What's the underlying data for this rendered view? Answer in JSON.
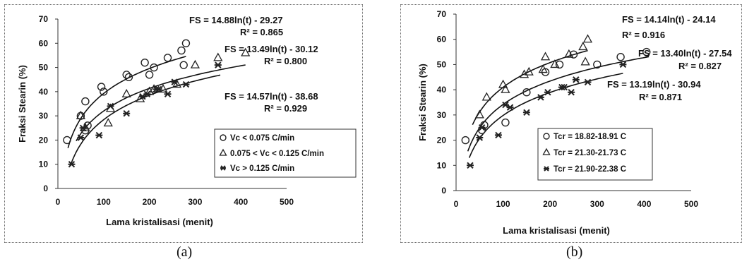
{
  "chart_data": [
    {
      "type": "scatter",
      "panel_label": "(a)",
      "xlabel": "Lama kristalisasi (menit)",
      "ylabel": "Fraksi Stearin (%)",
      "xlim": [
        0,
        500
      ],
      "ylim": [
        0,
        70
      ],
      "xticks": [
        "0",
        "100",
        "200",
        "300",
        "400",
        "500"
      ],
      "yticks": [
        "0",
        "10",
        "20",
        "30",
        "40",
        "50",
        "60",
        "70"
      ],
      "grid": false,
      "legend_position": "bottom-right",
      "series": [
        {
          "name": "Vc < 0.075 C/min",
          "marker": "circle",
          "points": [
            [
              20,
              20
            ],
            [
              50,
              30
            ],
            [
              60,
              24
            ],
            [
              60,
              36
            ],
            [
              65,
              26
            ],
            [
              95,
              42
            ],
            [
              100,
              40
            ],
            [
              150,
              47
            ],
            [
              155,
              46
            ],
            [
              190,
              52
            ],
            [
              200,
              47
            ],
            [
              210,
              50
            ],
            [
              240,
              54
            ],
            [
              270,
              57
            ],
            [
              280,
              60
            ],
            [
              275,
              51
            ]
          ],
          "fit": {
            "a": 14.88,
            "b": -29.27,
            "x_range": [
              22,
              280
            ]
          },
          "equation": "FS = 14.88ln(t) - 29.27",
          "r2": "R² = 0.865"
        },
        {
          "name": "0.075 < Vc < 0.125 C/min",
          "marker": "triangle",
          "points": [
            [
              50,
              30
            ],
            [
              60,
              25
            ],
            [
              110,
              27
            ],
            [
              115,
              33
            ],
            [
              150,
              39
            ],
            [
              180,
              37
            ],
            [
              200,
              40
            ],
            [
              210,
              41
            ],
            [
              230,
              41
            ],
            [
              260,
              43
            ],
            [
              300,
              51
            ],
            [
              350,
              54
            ],
            [
              410,
              56
            ]
          ],
          "fit": {
            "a": 13.49,
            "b": -30.12,
            "x_range": [
              40,
              410
            ]
          },
          "equation": "FS = 13.49ln(t) - 30.12",
          "r2": "R² = 0.800"
        },
        {
          "name": "Vc > 0.125 C/min",
          "marker": "star",
          "points": [
            [
              30,
              10
            ],
            [
              50,
              21
            ],
            [
              55,
              25
            ],
            [
              90,
              22
            ],
            [
              115,
              34
            ],
            [
              150,
              31
            ],
            [
              185,
              38
            ],
            [
              195,
              39
            ],
            [
              215,
              41
            ],
            [
              220,
              41
            ],
            [
              240,
              39
            ],
            [
              255,
              44
            ],
            [
              280,
              43
            ],
            [
              350,
              51
            ]
          ],
          "fit": {
            "a": 14.57,
            "b": -38.68,
            "x_range": [
              28,
              355
            ]
          },
          "equation": "FS = 14.57ln(t) - 38.68",
          "r2": "R² = 0.929"
        }
      ]
    },
    {
      "type": "scatter",
      "panel_label": "(b)",
      "xlabel": "Lama kristalisasi (menit)",
      "ylabel": "Fraksi Stearin (%)",
      "xlim": [
        0,
        500
      ],
      "ylim": [
        0,
        70
      ],
      "xticks": [
        "0",
        "100",
        "200",
        "300",
        "400",
        "500"
      ],
      "yticks": [
        "0",
        "10",
        "20",
        "30",
        "40",
        "50",
        "60",
        "70"
      ],
      "grid": false,
      "legend_position": "bottom-right",
      "series": [
        {
          "name": "Tcr = 18.82-18.91 C",
          "marker": "circle",
          "points": [
            [
              20,
              20
            ],
            [
              55,
              24
            ],
            [
              60,
              26
            ],
            [
              105,
              27
            ],
            [
              150,
              39
            ],
            [
              190,
              47
            ],
            [
              220,
              50
            ],
            [
              250,
              54
            ],
            [
              300,
              50
            ],
            [
              350,
              53
            ],
            [
              405,
              55
            ]
          ],
          "fit": {
            "a": 13.4,
            "b": -27.54,
            "x_range": [
              25,
              410
            ]
          },
          "equation": "FS = 13.40ln(t) - 27.54",
          "r2": "R² = 0.827"
        },
        {
          "name": "Tcr = 21.30-21.73 C",
          "marker": "triangle",
          "points": [
            [
              50,
              30
            ],
            [
              65,
              37
            ],
            [
              100,
              42
            ],
            [
              105,
              40
            ],
            [
              145,
              46
            ],
            [
              155,
              47
            ],
            [
              185,
              48
            ],
            [
              190,
              53
            ],
            [
              210,
              50
            ],
            [
              240,
              54
            ],
            [
              270,
              57
            ],
            [
              280,
              60
            ],
            [
              275,
              51
            ]
          ],
          "fit": {
            "a": 14.14,
            "b": -24.14,
            "x_range": [
              35,
              280
            ]
          },
          "equation": "FS = 14.14ln(t) - 24.14",
          "r2": "R² = 0.916"
        },
        {
          "name": "Tcr = 21.90-22.38 C",
          "marker": "star",
          "points": [
            [
              30,
              10
            ],
            [
              50,
              21
            ],
            [
              55,
              25
            ],
            [
              90,
              22
            ],
            [
              105,
              34
            ],
            [
              115,
              33
            ],
            [
              150,
              31
            ],
            [
              180,
              37
            ],
            [
              195,
              39
            ],
            [
              225,
              41
            ],
            [
              230,
              41
            ],
            [
              245,
              39
            ],
            [
              255,
              44
            ],
            [
              280,
              43
            ],
            [
              355,
              50
            ]
          ],
          "fit": {
            "a": 13.19,
            "b": -30.94,
            "x_range": [
              28,
              355
            ]
          },
          "equation": "FS = 13.19ln(t) - 30.94",
          "r2": "R² = 0.871"
        }
      ]
    }
  ]
}
